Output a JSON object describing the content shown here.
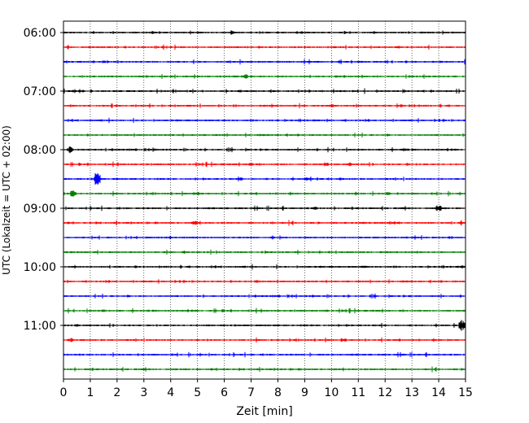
{
  "chart_data": {
    "type": "line",
    "title": "",
    "xlabel": "Zeit  [min]",
    "ylabel": "UTC (Lokalzeit = UTC + 02:00)",
    "xlim": [
      0,
      15
    ],
    "x_ticks": [
      0,
      1,
      2,
      3,
      4,
      5,
      6,
      7,
      8,
      9,
      10,
      11,
      12,
      13,
      14,
      15
    ],
    "x_grid": "dotted vertical lines at each minute",
    "row_minutes": 15,
    "y_tick_labels": [
      "06:00",
      "07:00",
      "08:00",
      "09:00",
      "10:00",
      "11:00"
    ],
    "y_tick_rows": [
      0,
      4,
      8,
      12,
      16,
      20
    ],
    "color_cycle": [
      "#000000",
      "#ff0000",
      "#0000ff",
      "#008000"
    ],
    "rows": [
      {
        "start": "06:00",
        "events": [
          [
            3.3,
            2
          ],
          [
            6.3,
            2.5
          ]
        ]
      },
      {
        "start": "06:15",
        "events": [
          [
            7.3,
            2
          ],
          [
            12.5,
            2
          ]
        ]
      },
      {
        "start": "06:30",
        "events": [
          [
            1.5,
            2
          ],
          [
            12,
            1.5
          ]
        ]
      },
      {
        "start": "06:45",
        "events": [
          [
            6.8,
            3
          ],
          [
            13.8,
            1.5
          ]
        ]
      },
      {
        "start": "07:00",
        "events": [
          [
            6.6,
            2.5
          ],
          [
            9.6,
            2
          ]
        ]
      },
      {
        "start": "07:15",
        "events": [
          [
            7.5,
            2.5
          ],
          [
            10,
            2.5
          ],
          [
            12.6,
            2
          ]
        ]
      },
      {
        "start": "07:30",
        "events": [
          [
            1,
            1.5
          ],
          [
            10.5,
            1.5
          ]
        ]
      },
      {
        "start": "07:45",
        "events": [
          [
            6,
            1.5
          ],
          [
            14.5,
            1.5
          ]
        ]
      },
      {
        "start": "08:00",
        "events": [
          [
            0.25,
            4.5
          ],
          [
            3.4,
            2
          ],
          [
            12.7,
            2.5
          ]
        ]
      },
      {
        "start": "08:15",
        "events": [
          [
            7,
            3
          ],
          [
            9.8,
            3
          ],
          [
            10.7,
            2.5
          ],
          [
            12.8,
            2
          ]
        ]
      },
      {
        "start": "08:30",
        "events": [
          [
            1.25,
            12
          ],
          [
            6.6,
            2.5
          ],
          [
            9.1,
            3
          ],
          [
            10.3,
            2
          ]
        ]
      },
      {
        "start": "08:45",
        "events": [
          [
            0.35,
            5.5
          ],
          [
            4.9,
            2.5
          ],
          [
            10.9,
            2.5
          ],
          [
            12.1,
            2.5
          ]
        ]
      },
      {
        "start": "09:00",
        "events": [
          [
            9.4,
            2.5
          ],
          [
            14,
            5
          ]
        ]
      },
      {
        "start": "09:15",
        "events": [
          [
            4.9,
            3
          ],
          [
            7.8,
            2
          ],
          [
            12.5,
            2
          ]
        ]
      },
      {
        "start": "09:30",
        "events": [
          [
            7.8,
            2
          ],
          [
            14.5,
            2
          ]
        ]
      },
      {
        "start": "09:45",
        "events": [
          [
            0.3,
            2
          ],
          [
            4.5,
            2
          ]
        ]
      },
      {
        "start": "10:00",
        "events": [
          [
            2.7,
            2
          ],
          [
            11.2,
            2.5
          ],
          [
            14.9,
            2
          ]
        ]
      },
      {
        "start": "10:15",
        "events": [
          [
            7.2,
            2
          ]
        ]
      },
      {
        "start": "10:30",
        "events": [
          [
            9.3,
            2
          ]
        ]
      },
      {
        "start": "10:45",
        "events": [
          [
            1.5,
            2
          ],
          [
            9.8,
            2
          ]
        ]
      },
      {
        "start": "11:00",
        "events": [
          [
            0.5,
            2
          ],
          [
            14.85,
            8
          ]
        ]
      },
      {
        "start": "11:15",
        "events": [
          [
            0.3,
            3
          ],
          [
            10.5,
            2
          ]
        ]
      },
      {
        "start": "11:30",
        "events": [
          [
            0.6,
            1.5
          ],
          [
            12.7,
            1.5
          ]
        ]
      },
      {
        "start": "11:45",
        "events": [
          [
            6,
            2
          ],
          [
            12,
            1.5
          ]
        ]
      }
    ]
  }
}
